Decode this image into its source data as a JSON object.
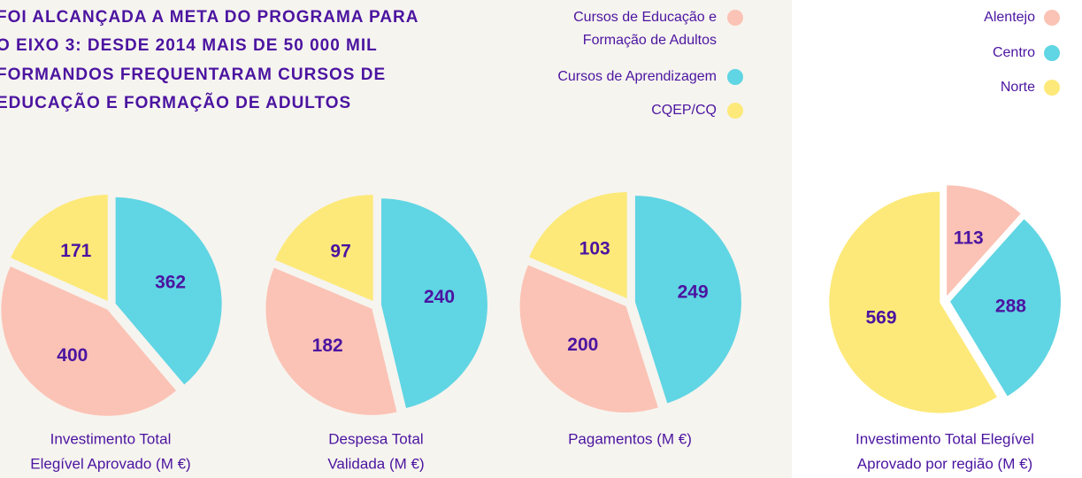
{
  "header": {
    "title": [
      "FOI ALCANÇADA A META DO PROGRAMA PARA",
      "O EIXO 3: DESDE 2014 MAIS DE 50 000 MIL",
      "FORMANDOS FREQUENTARAM CURSOS DE",
      "EDUCAÇÃO E FORMAÇÃO DE ADULTOS"
    ]
  },
  "legends": [
    {
      "items": [
        {
          "label": [
            "Cursos de Educação e",
            "Formação de Adultos"
          ],
          "color": "#fbc3b5"
        },
        {
          "label": [
            "Cursos de Aprendizagem"
          ],
          "color": "#60d5e3"
        },
        {
          "label": [
            "CQEP/CQ"
          ],
          "color": "#fde979"
        }
      ]
    },
    {
      "items": [
        {
          "label": [
            "Alentejo"
          ],
          "color": "#fbc3b5"
        },
        {
          "label": [
            "Centro"
          ],
          "color": "#60d5e3"
        },
        {
          "label": [
            "Norte"
          ],
          "color": "#fde979"
        }
      ]
    }
  ],
  "chart_data": [
    {
      "type": "pie",
      "title": [
        "Investimento Total",
        "Elegível Aprovado (M €)"
      ],
      "values": [
        362,
        400,
        171
      ],
      "colors": [
        "#60d5e3",
        "#fbc3b5",
        "#fde979"
      ]
    },
    {
      "type": "pie",
      "title": [
        "Despesa Total",
        "Validada (M €)"
      ],
      "values": [
        240,
        182,
        97
      ],
      "colors": [
        "#60d5e3",
        "#fbc3b5",
        "#fde979"
      ]
    },
    {
      "type": "pie",
      "title": [
        "Pagamentos (M €)"
      ],
      "values": [
        249,
        200,
        103
      ],
      "colors": [
        "#60d5e3",
        "#fbc3b5",
        "#fde979"
      ]
    },
    {
      "type": "pie",
      "title": [
        "Investimento Total Elegível",
        "Aprovado por região (M €)"
      ],
      "values": [
        113,
        288,
        569
      ],
      "colors": [
        "#fbc3b5",
        "#60d5e3",
        "#fde979"
      ]
    }
  ]
}
